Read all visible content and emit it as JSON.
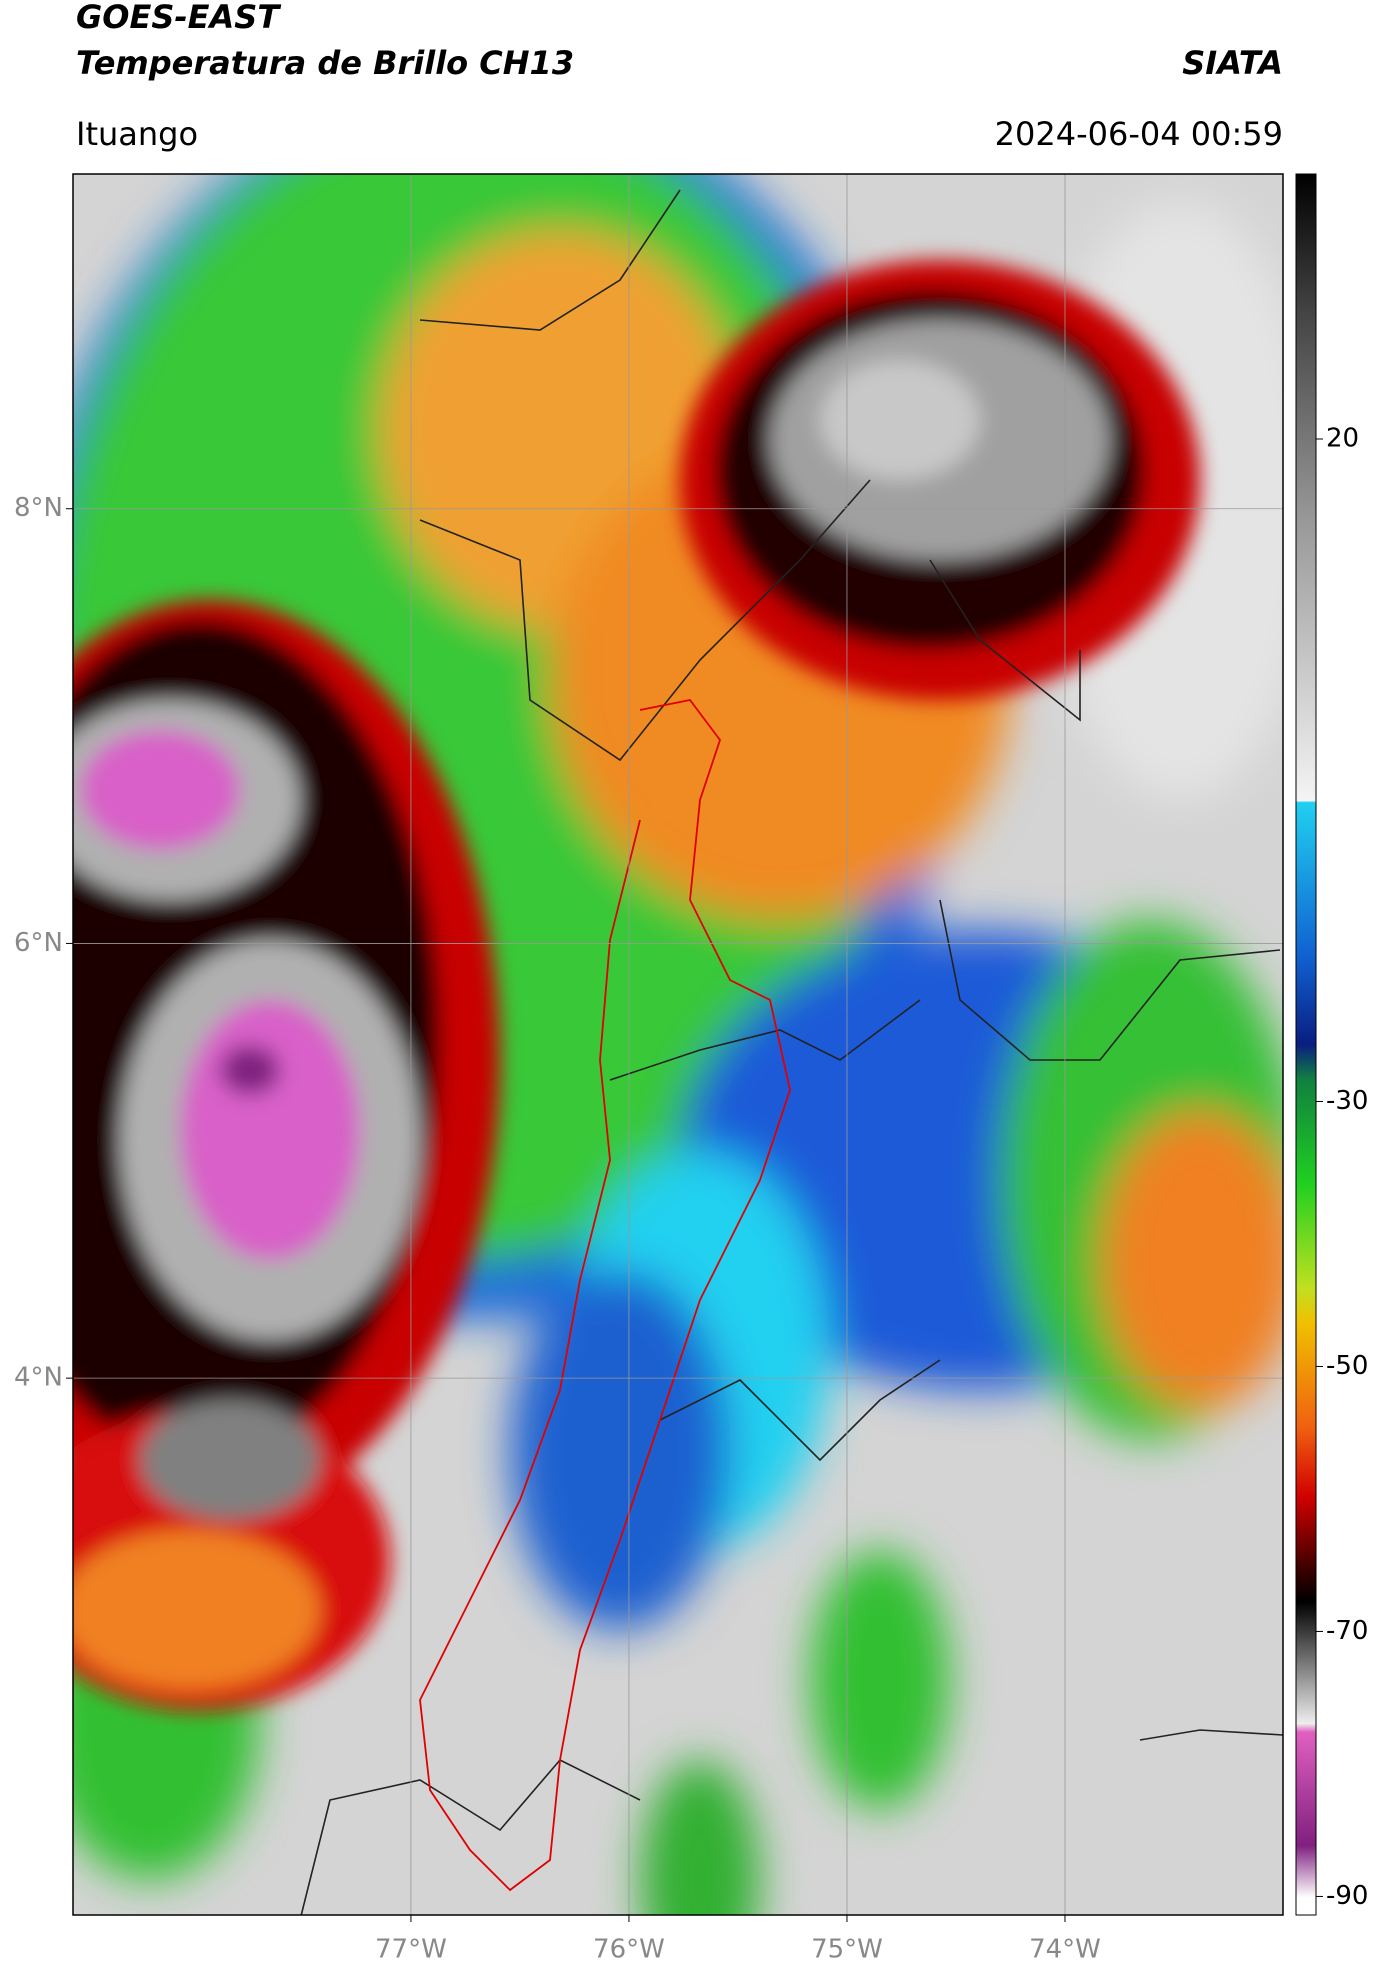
{
  "header": {
    "title": "GOES-EAST",
    "subtitle": "Temperatura de Brillo CH13",
    "source": "SIATA",
    "location": "Ituango",
    "timestamp": "2024-06-04 00:59"
  },
  "map": {
    "xlim": [
      -78.55,
      -73.0
    ],
    "ylim": [
      1.53,
      9.54
    ],
    "xticks": [
      {
        "value": -77,
        "label": "77°W"
      },
      {
        "value": -76,
        "label": "76°W"
      },
      {
        "value": -75,
        "label": "75°W"
      },
      {
        "value": -74,
        "label": "74°W"
      }
    ],
    "yticks": [
      {
        "value": 8,
        "label": "8°N"
      },
      {
        "value": 6,
        "label": "6°N"
      },
      {
        "value": 4,
        "label": "4°N"
      }
    ]
  },
  "colorbar": {
    "lim": [
      -91.4,
      40
    ],
    "ticks": [
      20,
      -30,
      -50,
      -70,
      -90
    ]
  }
}
